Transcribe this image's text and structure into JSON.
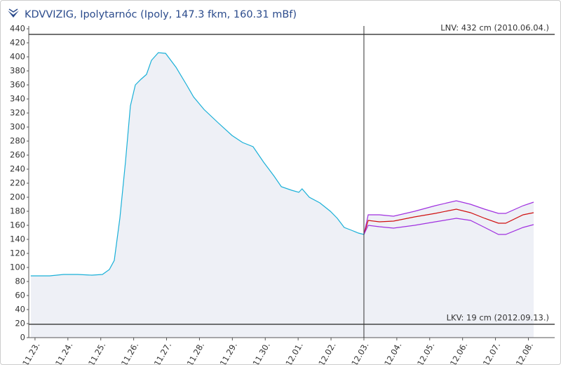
{
  "chart_data": {
    "type": "line",
    "title": "KDVVIZIG, Ipolytarnóc (Ipoly, 147.3 fkm, 160.31 mBf)",
    "xlim": [
      -0.19,
      15.8
    ],
    "xticks": [
      {
        "value": 0,
        "label": "11.23."
      },
      {
        "value": 1,
        "label": "11.24."
      },
      {
        "value": 2,
        "label": "11.25."
      },
      {
        "value": 3,
        "label": "11.26."
      },
      {
        "value": 4,
        "label": "11.27."
      },
      {
        "value": 5,
        "label": "11.28."
      },
      {
        "value": 6,
        "label": "11.29."
      },
      {
        "value": 7,
        "label": "11.30."
      },
      {
        "value": 8,
        "label": "12.01."
      },
      {
        "value": 9,
        "label": "12.02."
      },
      {
        "value": 10,
        "label": "12.03."
      },
      {
        "value": 11,
        "label": "12.04."
      },
      {
        "value": 12,
        "label": "12.05."
      },
      {
        "value": 13,
        "label": "12.06."
      },
      {
        "value": 14,
        "label": "12.07."
      },
      {
        "value": 15,
        "label": "12.08."
      }
    ],
    "ylim": [
      0,
      440
    ],
    "yticks": [
      0,
      20,
      40,
      60,
      80,
      100,
      120,
      140,
      160,
      180,
      200,
      220,
      240,
      260,
      280,
      300,
      320,
      340,
      360,
      380,
      400,
      420,
      440
    ],
    "grid": false,
    "reference_lines": [
      {
        "value": 432,
        "label": "LNV: 432 cm (2010.06.04.)"
      },
      {
        "value": 19,
        "label": "LKV: 19 cm (2012.09.13.)"
      }
    ],
    "now_x": 10,
    "series": [
      {
        "color": "#1ab0d8",
        "fill": true,
        "x": [
          -0.13,
          0.45,
          0.87,
          1.3,
          1.73,
          2.05,
          2.26,
          2.41,
          2.58,
          2.75,
          2.9,
          3.05,
          3.22,
          3.39,
          3.54,
          3.75,
          3.97,
          4.29,
          4.61,
          4.82,
          5.14,
          5.57,
          5.99,
          6.31,
          6.63,
          6.95,
          7.27,
          7.49,
          7.8,
          8.02,
          8.12,
          8.34,
          8.66,
          8.98,
          9.19,
          9.4,
          9.62,
          9.83,
          10.0
        ],
        "values": [
          88,
          88,
          90,
          90,
          89,
          90,
          97,
          110,
          170,
          250,
          330,
          360,
          368,
          375,
          395,
          406,
          405,
          385,
          360,
          343,
          325,
          306,
          288,
          278,
          272,
          250,
          230,
          215,
          210,
          207,
          212,
          200,
          192,
          180,
          170,
          157,
          153,
          149,
          147
        ]
      },
      {
        "color": "#a030e0",
        "fill": true,
        "x": [
          10,
          10.13,
          10.47,
          10.9,
          11.54,
          12.17,
          12.81,
          13.24,
          13.67,
          14.09,
          14.31,
          14.84,
          15.16
        ],
        "values": [
          147,
          175,
          175,
          173,
          180,
          188,
          195,
          190,
          183,
          177,
          177,
          188,
          193
        ]
      },
      {
        "color": "#d01010",
        "fill": false,
        "x": [
          10,
          10.13,
          10.47,
          10.9,
          11.54,
          12.17,
          12.81,
          13.24,
          13.67,
          14.09,
          14.31,
          14.84,
          15.16
        ],
        "values": [
          147,
          167,
          165,
          166,
          172,
          177,
          183,
          178,
          170,
          163,
          163,
          175,
          178
        ]
      },
      {
        "color": "#a030e0",
        "fill": false,
        "x": [
          10,
          10.13,
          10.47,
          10.9,
          11.54,
          12.17,
          12.81,
          13.24,
          13.67,
          14.09,
          14.31,
          14.84,
          15.16
        ],
        "values": [
          147,
          160,
          158,
          156,
          160,
          165,
          170,
          167,
          157,
          147,
          147,
          157,
          161
        ]
      }
    ]
  }
}
